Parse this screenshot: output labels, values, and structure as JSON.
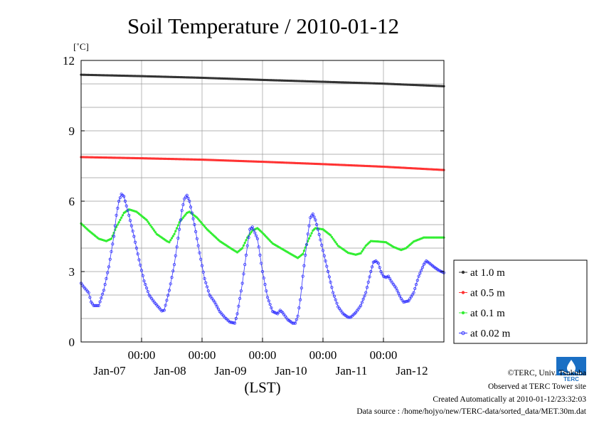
{
  "chart_data": {
    "type": "line",
    "title": "Soil Temperature / 2010-01-12",
    "ylabel": "[˚C]",
    "xlabel": "(LST)",
    "x_unit": "hours since 2010-01-06 12:00 LST",
    "xlim": [
      0,
      144
    ],
    "ylim": [
      0,
      12
    ],
    "yticks": [
      0,
      3,
      6,
      9,
      12
    ],
    "xticks": [
      {
        "x": 24,
        "time": "00:00",
        "date": "Jan-07"
      },
      {
        "x": 48,
        "time": "00:00",
        "date": "Jan-08"
      },
      {
        "x": 72,
        "time": "00:00",
        "date": "Jan-09"
      },
      {
        "x": 96,
        "time": "00:00",
        "date": "Jan-10"
      },
      {
        "x": 120,
        "time": "00:00",
        "date": "Jan-11"
      },
      {
        "x": 144,
        "time": "",
        "date": "Jan-12"
      }
    ],
    "grid": true,
    "legend_position": "right-bottom",
    "series": [
      {
        "name": "at 1.0 m",
        "color": "#333333",
        "marker": "dot",
        "points": [
          [
            0,
            11.39
          ],
          [
            24,
            11.33
          ],
          [
            48,
            11.26
          ],
          [
            72,
            11.17
          ],
          [
            96,
            11.09
          ],
          [
            120,
            11.01
          ],
          [
            144,
            10.9
          ]
        ]
      },
      {
        "name": "at 0.5 m",
        "color": "#ff3333",
        "marker": "dot",
        "points": [
          [
            0,
            7.88
          ],
          [
            24,
            7.83
          ],
          [
            48,
            7.77
          ],
          [
            72,
            7.68
          ],
          [
            96,
            7.58
          ],
          [
            120,
            7.47
          ],
          [
            144,
            7.33
          ]
        ]
      },
      {
        "name": "at 0.1 m",
        "color": "#33ee33",
        "marker": "dot",
        "points": [
          [
            0,
            5.05
          ],
          [
            3,
            4.75
          ],
          [
            7,
            4.4
          ],
          [
            10,
            4.3
          ],
          [
            12,
            4.4
          ],
          [
            14,
            4.9
          ],
          [
            17,
            5.5
          ],
          [
            19,
            5.65
          ],
          [
            22,
            5.55
          ],
          [
            26,
            5.2
          ],
          [
            30,
            4.6
          ],
          [
            34,
            4.3
          ],
          [
            35,
            4.25
          ],
          [
            37,
            4.6
          ],
          [
            39,
            5.1
          ],
          [
            42,
            5.5
          ],
          [
            43,
            5.55
          ],
          [
            46,
            5.3
          ],
          [
            50,
            4.8
          ],
          [
            55,
            4.3
          ],
          [
            60,
            3.95
          ],
          [
            62,
            3.82
          ],
          [
            64,
            4.0
          ],
          [
            66,
            4.45
          ],
          [
            68,
            4.75
          ],
          [
            70,
            4.85
          ],
          [
            72,
            4.65
          ],
          [
            76,
            4.2
          ],
          [
            80,
            3.95
          ],
          [
            84,
            3.7
          ],
          [
            86,
            3.58
          ],
          [
            88,
            3.75
          ],
          [
            90,
            4.3
          ],
          [
            92,
            4.75
          ],
          [
            93,
            4.85
          ],
          [
            96,
            4.8
          ],
          [
            99,
            4.55
          ],
          [
            102,
            4.1
          ],
          [
            106,
            3.8
          ],
          [
            109,
            3.72
          ],
          [
            111,
            3.78
          ],
          [
            113,
            4.1
          ],
          [
            115,
            4.3
          ],
          [
            118,
            4.28
          ],
          [
            121,
            4.25
          ],
          [
            124,
            4.05
          ],
          [
            127,
            3.92
          ],
          [
            129,
            4.0
          ],
          [
            132,
            4.28
          ],
          [
            136,
            4.45
          ],
          [
            140,
            4.45
          ],
          [
            144,
            4.45
          ]
        ]
      },
      {
        "name": "at 0.02 m",
        "color": "#3333ff",
        "marker": "circle",
        "points": [
          [
            0,
            2.5
          ],
          [
            1,
            2.35
          ],
          [
            3,
            2.1
          ],
          [
            4,
            1.7
          ],
          [
            5,
            1.55
          ],
          [
            7,
            1.55
          ],
          [
            9,
            2.2
          ],
          [
            11,
            3.2
          ],
          [
            13,
            4.5
          ],
          [
            14,
            5.4
          ],
          [
            15,
            6.0
          ],
          [
            16,
            6.3
          ],
          [
            17,
            6.2
          ],
          [
            19,
            5.4
          ],
          [
            21,
            4.5
          ],
          [
            23,
            3.5
          ],
          [
            25,
            2.6
          ],
          [
            27,
            2.0
          ],
          [
            29,
            1.7
          ],
          [
            31,
            1.45
          ],
          [
            32,
            1.32
          ],
          [
            33,
            1.35
          ],
          [
            35,
            2.2
          ],
          [
            37,
            3.3
          ],
          [
            39,
            4.8
          ],
          [
            40,
            5.6
          ],
          [
            41,
            6.1
          ],
          [
            42,
            6.25
          ],
          [
            43,
            6.0
          ],
          [
            45,
            5.0
          ],
          [
            47,
            3.8
          ],
          [
            49,
            2.7
          ],
          [
            51,
            2.0
          ],
          [
            53,
            1.7
          ],
          [
            55,
            1.3
          ],
          [
            57,
            1.05
          ],
          [
            59,
            0.85
          ],
          [
            61,
            0.8
          ],
          [
            62,
            1.2
          ],
          [
            64,
            2.5
          ],
          [
            65,
            3.3
          ],
          [
            66,
            4.1
          ],
          [
            67,
            4.8
          ],
          [
            68,
            4.9
          ],
          [
            70,
            4.4
          ],
          [
            72,
            3.0
          ],
          [
            74,
            1.9
          ],
          [
            76,
            1.3
          ],
          [
            78,
            1.2
          ],
          [
            79,
            1.35
          ],
          [
            80,
            1.25
          ],
          [
            82,
            0.95
          ],
          [
            84,
            0.8
          ],
          [
            85,
            0.8
          ],
          [
            86,
            1.1
          ],
          [
            87,
            1.8
          ],
          [
            88,
            2.8
          ],
          [
            89,
            3.7
          ],
          [
            90,
            4.6
          ],
          [
            91,
            5.3
          ],
          [
            92,
            5.45
          ],
          [
            93,
            5.2
          ],
          [
            94,
            4.8
          ],
          [
            96,
            3.9
          ],
          [
            98,
            3.0
          ],
          [
            100,
            2.1
          ],
          [
            102,
            1.5
          ],
          [
            104,
            1.2
          ],
          [
            106,
            1.05
          ],
          [
            107,
            1.05
          ],
          [
            109,
            1.25
          ],
          [
            111,
            1.55
          ],
          [
            113,
            2.1
          ],
          [
            115,
            3.0
          ],
          [
            116,
            3.4
          ],
          [
            117,
            3.45
          ],
          [
            118,
            3.35
          ],
          [
            119,
            3.0
          ],
          [
            120,
            2.8
          ],
          [
            121,
            2.75
          ],
          [
            122,
            2.8
          ],
          [
            123,
            2.6
          ],
          [
            125,
            2.3
          ],
          [
            127,
            1.85
          ],
          [
            128,
            1.7
          ],
          [
            130,
            1.75
          ],
          [
            132,
            2.1
          ],
          [
            134,
            2.8
          ],
          [
            136,
            3.3
          ],
          [
            137,
            3.45
          ],
          [
            138,
            3.38
          ],
          [
            140,
            3.2
          ],
          [
            142,
            3.05
          ],
          [
            144,
            2.95
          ]
        ]
      }
    ]
  },
  "footer": {
    "copyright": "©TERC, Univ. Tsukuba",
    "observed": "Observed at TERC Tower site",
    "created": "Created Automatically at 2010-01-12/23:32:03",
    "source": "Data source : /home/hojyo/new/TERC-data/sorted_data/MET.30m.dat",
    "logo_text": "TERC"
  }
}
